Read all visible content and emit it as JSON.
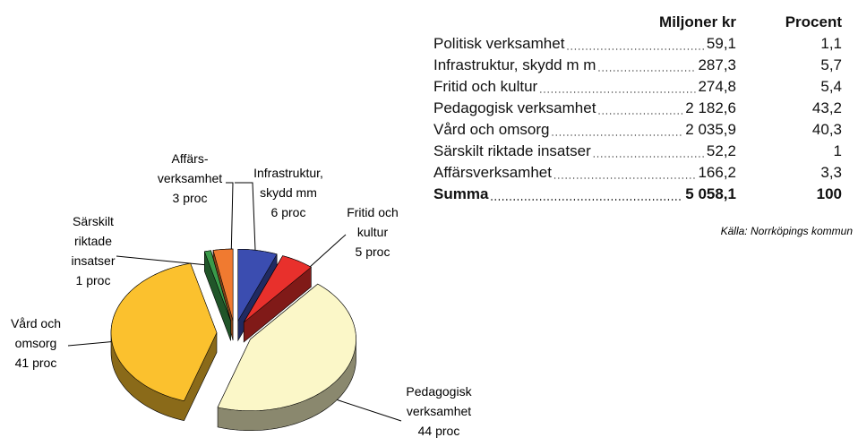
{
  "chart_data": {
    "type": "pie",
    "categories": [
      [
        "Infrastruktur,",
        "skydd mm"
      ],
      [
        "Fritid och",
        "kultur"
      ],
      [
        "Pedagogisk",
        "verksamhet"
      ],
      [
        "Vård och",
        "omsorg"
      ],
      [
        "Särskilt",
        "riktade",
        "insatser"
      ],
      [
        "Affärs-",
        "verksamhet"
      ]
    ],
    "values": [
      6,
      5,
      44,
      41,
      1,
      3
    ],
    "value_labels": [
      "6 proc",
      "5 proc",
      "44 proc",
      "41 proc",
      "1 proc",
      "3 proc"
    ],
    "colors": [
      "#3b4db0",
      "#e8302c",
      "#fbf7c8",
      "#fbc12e",
      "#3a9a4a",
      "#f07a30"
    ]
  },
  "table": {
    "header": [
      "Miljoner kr",
      "Procent"
    ],
    "rows": [
      [
        "Politisk verksamhet",
        "59,1",
        "1,1"
      ],
      [
        "Infrastruktur, skydd m m",
        "287,3",
        "5,7"
      ],
      [
        "Fritid och kultur",
        "274,8",
        "5,4"
      ],
      [
        "Pedagogisk verksamhet",
        "2 182,6",
        "43,2"
      ],
      [
        "Vård och omsorg",
        "2 035,9",
        "40,3"
      ],
      [
        "Särskilt riktade insatser",
        "52,2",
        "1"
      ],
      [
        "Affärsverksamhet",
        "166,2",
        "3,3"
      ]
    ],
    "total": [
      "Summa",
      "5 058,1",
      "100"
    ]
  },
  "source": "Källa: Norrköpings kommun"
}
